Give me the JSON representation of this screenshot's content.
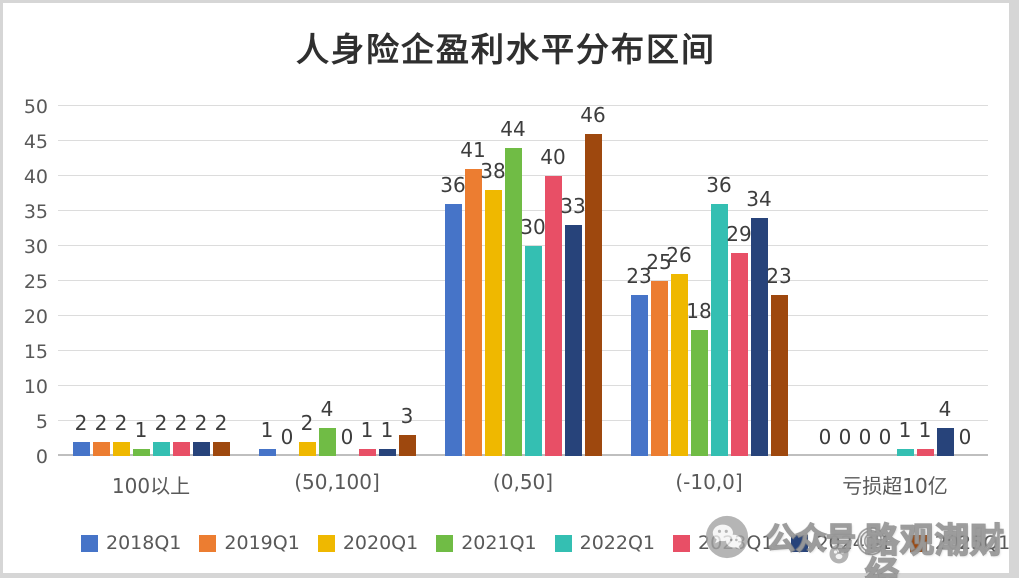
{
  "title": "人身险企盈利水平分布区间",
  "watermark": {
    "prefix": "公众号@",
    "name": "路观潮财经"
  },
  "colors": {
    "axis_line": "#bfbfbf",
    "gridline": "#dcdcdc",
    "tick_label": "#595959",
    "data_label": "#3d3d3d",
    "category_label": "#595959",
    "legend_label": "#595959",
    "title_color": "#2f2f2f"
  },
  "chart_data": {
    "type": "bar",
    "title": "人身险企盈利水平分布区间",
    "categories": [
      "100以上",
      "(50,100]",
      "(0,50]",
      "(-10,0]",
      "亏损超10亿"
    ],
    "series": [
      {
        "name": "2018Q1",
        "color": "#4674C8",
        "values": [
          2,
          1,
          36,
          23,
          0
        ]
      },
      {
        "name": "2019Q1",
        "color": "#EC7D31",
        "values": [
          2,
          0,
          41,
          25,
          0
        ]
      },
      {
        "name": "2020Q1",
        "color": "#EFB800",
        "values": [
          2,
          2,
          38,
          26,
          0
        ]
      },
      {
        "name": "2021Q1",
        "color": "#70BC45",
        "values": [
          1,
          4,
          44,
          18,
          0
        ]
      },
      {
        "name": "2022Q1",
        "color": "#34BFB2",
        "values": [
          2,
          0,
          30,
          36,
          1
        ]
      },
      {
        "name": "2023Q1",
        "color": "#E84F66",
        "values": [
          2,
          1,
          40,
          29,
          1
        ]
      },
      {
        "name": "2024Q1",
        "color": "#27437A",
        "values": [
          2,
          1,
          33,
          34,
          4
        ]
      },
      {
        "name": "2025Q1",
        "color": "#9E480E",
        "values": [
          2,
          3,
          46,
          23,
          0
        ]
      }
    ],
    "ylim": [
      0,
      50
    ],
    "ytick_step": 5,
    "grid": true,
    "legend_position": "bottom",
    "value_labels": "outside-end"
  }
}
